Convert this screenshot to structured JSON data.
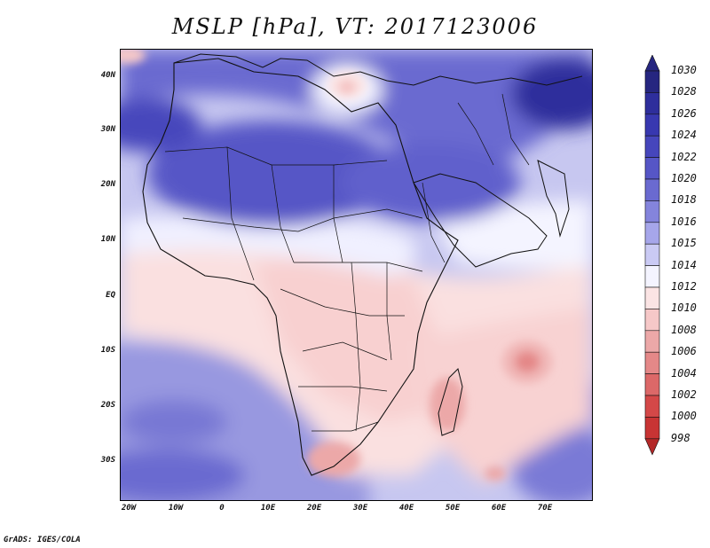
{
  "title": "MSLP [hPa], VT: 2017123006",
  "credit": "GrADS: IGES/COLA",
  "y_axis_labels": [
    "40N",
    "30N",
    "20N",
    "10N",
    "EQ",
    "10S",
    "20S",
    "30S"
  ],
  "x_axis_labels": [
    "20W",
    "10W",
    "0",
    "10E",
    "20E",
    "30E",
    "40E",
    "50E",
    "60E",
    "70E"
  ],
  "colorbar": {
    "levels": [
      "1030",
      "1028",
      "1026",
      "1024",
      "1022",
      "1020",
      "1018",
      "1016",
      "1015",
      "1014",
      "1012",
      "1010",
      "1008",
      "1006",
      "1004",
      "1002",
      "1000",
      "998"
    ],
    "colors": [
      "#262680",
      "#2e2e9c",
      "#3838b0",
      "#4646bc",
      "#5656c6",
      "#6a6ad0",
      "#8484dc",
      "#a6a6ea",
      "#cacaf4",
      "#f4f4ff",
      "#fbe4e4",
      "#f6c8c8",
      "#eca8a8",
      "#e48888",
      "#dc6868",
      "#d44848",
      "#c83434",
      "#b42828"
    ]
  },
  "map_features": {
    "high_pressure_center": "North Africa / Middle East",
    "low_pressure_centers": [
      "Indian Ocean near 65E 12S",
      "South Africa",
      "Madagascar"
    ]
  }
}
